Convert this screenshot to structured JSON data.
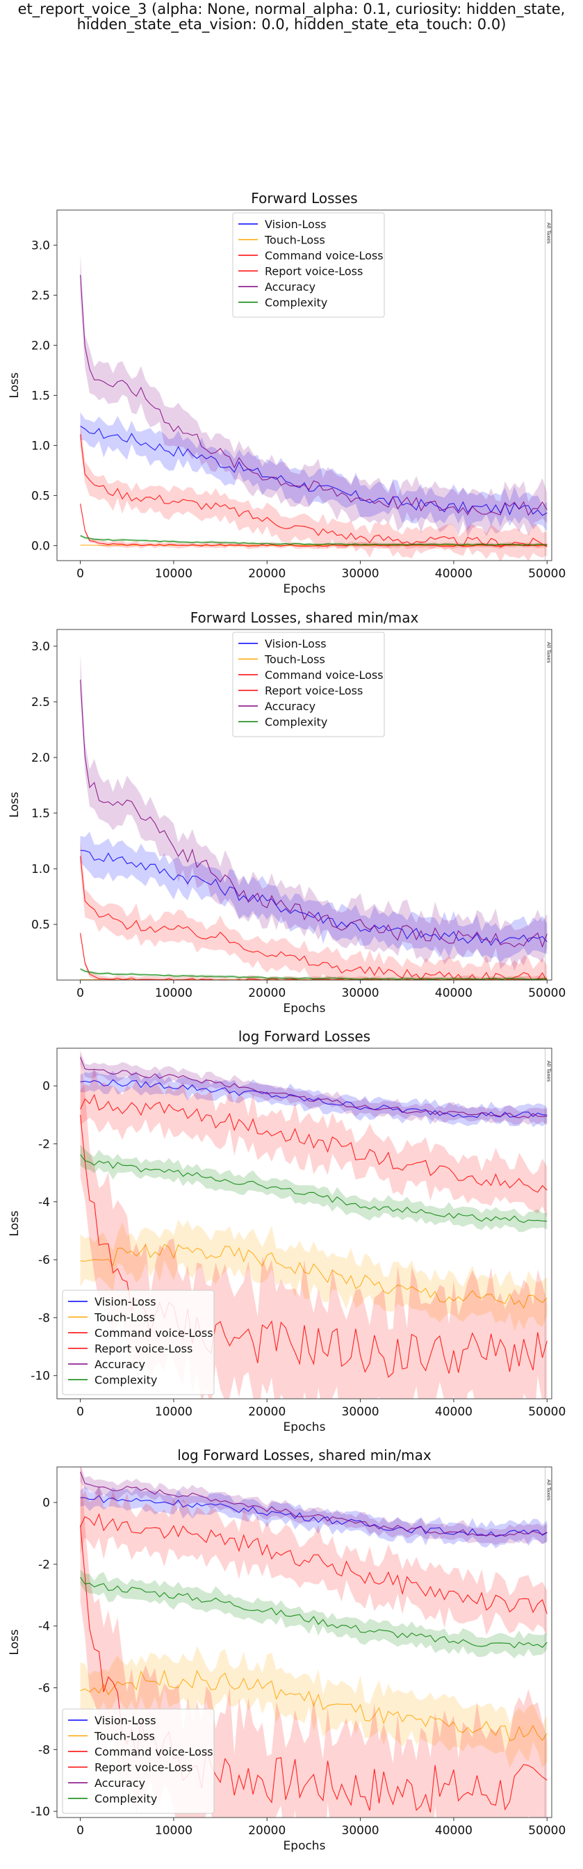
{
  "suptitle": {
    "line1": "et_report_voice_3 (alpha: None, normal_alpha: 0.1, curiosity: hidden_state,",
    "line2": "hidden_state_eta_vision: 0.0, hidden_state_eta_touch: 0.0)"
  },
  "colors": {
    "vision": "#0000ff",
    "touch": "#ffa500",
    "command": "#ff0000",
    "report": "#ff0000",
    "accuracy": "#800080",
    "complexity": "#008000"
  },
  "chart_data": [
    {
      "type": "line",
      "title": "Forward Losses",
      "xlabel": "Epochs",
      "ylabel": "Loss",
      "xlim": [
        -2500,
        50500
      ],
      "ylim": [
        -0.15,
        3.35
      ],
      "xticks": [
        "0",
        "10000",
        "20000",
        "30000",
        "40000",
        "50000"
      ],
      "yticks": [
        "0.0",
        "0.5",
        "1.0",
        "1.5",
        "2.0",
        "2.5",
        "3.0"
      ],
      "legend": "top-center",
      "annotation": "All Taxes",
      "series": [
        {
          "name": "Vision-Loss",
          "color": "#0000ff",
          "x": [
            0,
            500,
            2000,
            5000,
            8000,
            10000,
            13000,
            16000,
            20000,
            25000,
            30000,
            35000,
            40000,
            45000,
            50000
          ],
          "y": [
            1.18,
            1.15,
            1.12,
            1.08,
            1.0,
            0.95,
            0.9,
            0.8,
            0.7,
            0.58,
            0.48,
            0.42,
            0.38,
            0.37,
            0.36
          ],
          "band": 0.12
        },
        {
          "name": "Touch-Loss",
          "color": "#ffa500",
          "x": [
            0,
            500,
            2000,
            10000,
            20000,
            30000,
            40000,
            50000
          ],
          "y": [
            0.005,
            0.004,
            0.003,
            0.003,
            0.003,
            0.003,
            0.003,
            0.003
          ],
          "band": 0.003
        },
        {
          "name": "Command voice-Loss",
          "color": "#ff0000",
          "x": [
            0,
            500,
            2000,
            5000,
            10000,
            15000,
            20000,
            25000,
            30000,
            35000,
            40000,
            45000,
            50000
          ],
          "y": [
            1.12,
            0.7,
            0.58,
            0.5,
            0.45,
            0.38,
            0.25,
            0.15,
            0.08,
            0.05,
            0.04,
            0.03,
            0.02
          ],
          "band": 0.1
        },
        {
          "name": "Report voice-Loss",
          "color": "#ff0000",
          "x": [
            0,
            500,
            1000,
            2000,
            5000,
            10000,
            20000,
            30000,
            40000,
            50000
          ],
          "y": [
            0.42,
            0.15,
            0.05,
            0.02,
            0.01,
            0.005,
            0.003,
            0.003,
            0.003,
            0.003
          ],
          "band": 0.02
        },
        {
          "name": "Accuracy",
          "color": "#800080",
          "x": [
            0,
            500,
            1000,
            3000,
            6000,
            8000,
            10000,
            13000,
            16000,
            20000,
            25000,
            30000,
            35000,
            40000,
            45000,
            50000
          ],
          "y": [
            2.7,
            2.0,
            1.75,
            1.62,
            1.55,
            1.4,
            1.2,
            1.05,
            0.85,
            0.7,
            0.58,
            0.48,
            0.42,
            0.38,
            0.37,
            0.36
          ],
          "band": 0.15
        },
        {
          "name": "Complexity",
          "color": "#008000",
          "x": [
            0,
            500,
            2000,
            10000,
            20000,
            30000,
            40000,
            50000
          ],
          "y": [
            0.1,
            0.08,
            0.06,
            0.04,
            0.02,
            0.012,
            0.01,
            0.01
          ],
          "band": 0.01
        }
      ]
    },
    {
      "type": "line",
      "title": "Forward Losses, shared min/max",
      "xlabel": "Epochs",
      "ylabel": "Loss",
      "xlim": [
        -2500,
        50500
      ],
      "ylim": [
        0.0,
        3.15
      ],
      "xticks": [
        "0",
        "10000",
        "20000",
        "30000",
        "40000",
        "50000"
      ],
      "yticks": [
        "0.5",
        "1.0",
        "1.5",
        "2.0",
        "2.5",
        "3.0"
      ],
      "legend": "top-center",
      "annotation": "All Taxes",
      "series": [
        {
          "name": "Vision-Loss",
          "color": "#0000ff",
          "x": [
            0,
            500,
            2000,
            5000,
            8000,
            10000,
            13000,
            16000,
            20000,
            25000,
            30000,
            35000,
            40000,
            45000,
            50000
          ],
          "y": [
            1.18,
            1.15,
            1.12,
            1.08,
            1.0,
            0.95,
            0.9,
            0.8,
            0.7,
            0.58,
            0.48,
            0.42,
            0.38,
            0.37,
            0.36
          ],
          "band": 0.12
        },
        {
          "name": "Touch-Loss",
          "color": "#ffa500",
          "x": [
            0,
            500,
            2000,
            10000,
            20000,
            30000,
            40000,
            50000
          ],
          "y": [
            0.005,
            0.004,
            0.003,
            0.003,
            0.003,
            0.003,
            0.003,
            0.003
          ],
          "band": 0.003
        },
        {
          "name": "Command voice-Loss",
          "color": "#ff0000",
          "x": [
            0,
            500,
            2000,
            5000,
            10000,
            15000,
            20000,
            25000,
            30000,
            35000,
            40000,
            45000,
            50000
          ],
          "y": [
            1.12,
            0.7,
            0.58,
            0.5,
            0.45,
            0.38,
            0.25,
            0.15,
            0.08,
            0.05,
            0.04,
            0.03,
            0.02
          ],
          "band": 0.1
        },
        {
          "name": "Report voice-Loss",
          "color": "#ff0000",
          "x": [
            0,
            500,
            1000,
            2000,
            5000,
            10000,
            20000,
            30000,
            40000,
            50000
          ],
          "y": [
            0.42,
            0.15,
            0.05,
            0.02,
            0.01,
            0.005,
            0.003,
            0.003,
            0.003,
            0.003
          ],
          "band": 0.02
        },
        {
          "name": "Accuracy",
          "color": "#800080",
          "x": [
            0,
            500,
            1000,
            3000,
            6000,
            8000,
            10000,
            13000,
            16000,
            20000,
            25000,
            30000,
            35000,
            40000,
            45000,
            50000
          ],
          "y": [
            2.7,
            2.0,
            1.75,
            1.62,
            1.55,
            1.4,
            1.2,
            1.05,
            0.85,
            0.7,
            0.58,
            0.48,
            0.42,
            0.38,
            0.37,
            0.36
          ],
          "band": 0.15
        },
        {
          "name": "Complexity",
          "color": "#008000",
          "x": [
            0,
            500,
            2000,
            10000,
            20000,
            30000,
            40000,
            50000
          ],
          "y": [
            0.1,
            0.08,
            0.06,
            0.04,
            0.02,
            0.012,
            0.01,
            0.01
          ],
          "band": 0.01
        }
      ]
    },
    {
      "type": "line",
      "title": "log Forward Losses",
      "xlabel": "Epochs",
      "ylabel": "Loss",
      "xlim": [
        -2500,
        50500
      ],
      "ylim": [
        -10.8,
        1.3
      ],
      "xticks": [
        "0",
        "10000",
        "20000",
        "30000",
        "40000",
        "50000"
      ],
      "yticks": [
        "-10",
        "-8",
        "-6",
        "-4",
        "-2",
        "0"
      ],
      "legend": "bottom-left",
      "annotation": "All Taxes",
      "series": [
        {
          "name": "Vision-Loss",
          "color": "#0000ff",
          "x": [
            0,
            2000,
            5000,
            10000,
            15000,
            20000,
            25000,
            30000,
            35000,
            40000,
            45000,
            50000
          ],
          "y": [
            0.15,
            0.12,
            0.08,
            0.0,
            -0.15,
            -0.3,
            -0.5,
            -0.7,
            -0.85,
            -0.95,
            -1.0,
            -1.0
          ],
          "band": 0.25
        },
        {
          "name": "Touch-Loss",
          "color": "#ffa500",
          "x": [
            0,
            2000,
            5000,
            10000,
            15000,
            20000,
            25000,
            30000,
            35000,
            40000,
            45000,
            50000
          ],
          "y": [
            -6.1,
            -6.0,
            -5.8,
            -5.7,
            -5.8,
            -6.0,
            -6.4,
            -6.8,
            -7.1,
            -7.3,
            -7.4,
            -7.5
          ],
          "band": 0.6
        },
        {
          "name": "Command voice-Loss",
          "color": "#ff0000",
          "x": [
            0,
            500,
            2000,
            5000,
            10000,
            15000,
            20000,
            25000,
            30000,
            35000,
            40000,
            45000,
            50000
          ],
          "y": [
            -0.8,
            -0.5,
            -0.6,
            -0.7,
            -0.9,
            -1.2,
            -1.5,
            -1.9,
            -2.3,
            -2.7,
            -3.0,
            -3.3,
            -3.4
          ],
          "band": 0.6
        },
        {
          "name": "Report voice-Loss",
          "color": "#ff0000",
          "x": [
            0,
            500,
            1000,
            2000,
            4000,
            6000,
            8000,
            10000,
            13000,
            16000,
            20000,
            25000,
            30000,
            35000,
            40000,
            45000,
            50000
          ],
          "y": [
            -0.9,
            -2.5,
            -4.0,
            -5.5,
            -6.8,
            -7.5,
            -8.0,
            -8.2,
            -8.5,
            -8.7,
            -8.9,
            -9.0,
            -9.2,
            -9.3,
            -9.3,
            -9.3,
            -9.0
          ],
          "band": 1.6
        },
        {
          "name": "Accuracy",
          "color": "#800080",
          "x": [
            0,
            500,
            2000,
            5000,
            10000,
            15000,
            20000,
            25000,
            30000,
            35000,
            40000,
            45000,
            50000
          ],
          "y": [
            1.0,
            0.6,
            0.5,
            0.45,
            0.3,
            0.1,
            -0.2,
            -0.45,
            -0.7,
            -0.85,
            -0.95,
            -1.0,
            -1.0
          ],
          "band": 0.2
        },
        {
          "name": "Complexity",
          "color": "#008000",
          "x": [
            0,
            500,
            2000,
            5000,
            10000,
            15000,
            20000,
            25000,
            30000,
            35000,
            40000,
            45000,
            50000
          ],
          "y": [
            -2.4,
            -2.6,
            -2.7,
            -2.8,
            -3.0,
            -3.2,
            -3.5,
            -3.8,
            -4.1,
            -4.3,
            -4.5,
            -4.6,
            -4.6
          ],
          "band": 0.25
        }
      ]
    },
    {
      "type": "line",
      "title": "log Forward Losses, shared min/max",
      "xlabel": "Epochs",
      "ylabel": "Loss",
      "xlim": [
        -2500,
        50500
      ],
      "ylim": [
        -10.2,
        1.15
      ],
      "xticks": [
        "0",
        "10000",
        "20000",
        "30000",
        "40000",
        "50000"
      ],
      "yticks": [
        "-10",
        "-8",
        "-6",
        "-4",
        "-2",
        "0"
      ],
      "legend": "bottom-left",
      "annotation": "All Taxes",
      "series": [
        {
          "name": "Vision-Loss",
          "color": "#0000ff",
          "x": [
            0,
            2000,
            5000,
            10000,
            15000,
            20000,
            25000,
            30000,
            35000,
            40000,
            45000,
            50000
          ],
          "y": [
            0.15,
            0.12,
            0.08,
            0.0,
            -0.15,
            -0.3,
            -0.5,
            -0.7,
            -0.85,
            -0.95,
            -1.0,
            -1.0
          ],
          "band": 0.25
        },
        {
          "name": "Touch-Loss",
          "color": "#ffa500",
          "x": [
            0,
            2000,
            5000,
            10000,
            15000,
            20000,
            25000,
            30000,
            35000,
            40000,
            45000,
            50000
          ],
          "y": [
            -6.1,
            -6.0,
            -5.8,
            -5.7,
            -5.8,
            -6.0,
            -6.4,
            -6.8,
            -7.1,
            -7.3,
            -7.4,
            -7.5
          ],
          "band": 0.6
        },
        {
          "name": "Command voice-Loss",
          "color": "#ff0000",
          "x": [
            0,
            500,
            2000,
            5000,
            10000,
            15000,
            20000,
            25000,
            30000,
            35000,
            40000,
            45000,
            50000
          ],
          "y": [
            -0.8,
            -0.5,
            -0.6,
            -0.7,
            -0.9,
            -1.2,
            -1.5,
            -1.9,
            -2.3,
            -2.7,
            -3.0,
            -3.3,
            -3.4
          ],
          "band": 0.6
        },
        {
          "name": "Report voice-Loss",
          "color": "#ff0000",
          "x": [
            0,
            500,
            1000,
            2000,
            4000,
            6000,
            8000,
            10000,
            13000,
            16000,
            20000,
            25000,
            30000,
            35000,
            40000,
            45000,
            50000
          ],
          "y": [
            -0.9,
            -2.5,
            -4.0,
            -5.5,
            -6.8,
            -7.5,
            -8.0,
            -8.2,
            -8.5,
            -8.7,
            -8.9,
            -9.0,
            -9.2,
            -9.3,
            -9.3,
            -9.3,
            -9.0
          ],
          "band": 1.6
        },
        {
          "name": "Accuracy",
          "color": "#800080",
          "x": [
            0,
            500,
            2000,
            5000,
            10000,
            15000,
            20000,
            25000,
            30000,
            35000,
            40000,
            45000,
            50000
          ],
          "y": [
            1.0,
            0.6,
            0.5,
            0.45,
            0.3,
            0.1,
            -0.2,
            -0.45,
            -0.7,
            -0.85,
            -0.95,
            -1.0,
            -1.0
          ],
          "band": 0.2
        },
        {
          "name": "Complexity",
          "color": "#008000",
          "x": [
            0,
            500,
            2000,
            5000,
            10000,
            15000,
            20000,
            25000,
            30000,
            35000,
            40000,
            45000,
            50000
          ],
          "y": [
            -2.4,
            -2.6,
            -2.7,
            -2.8,
            -3.0,
            -3.2,
            -3.5,
            -3.8,
            -4.1,
            -4.3,
            -4.5,
            -4.6,
            -4.6
          ],
          "band": 0.25
        }
      ]
    }
  ]
}
